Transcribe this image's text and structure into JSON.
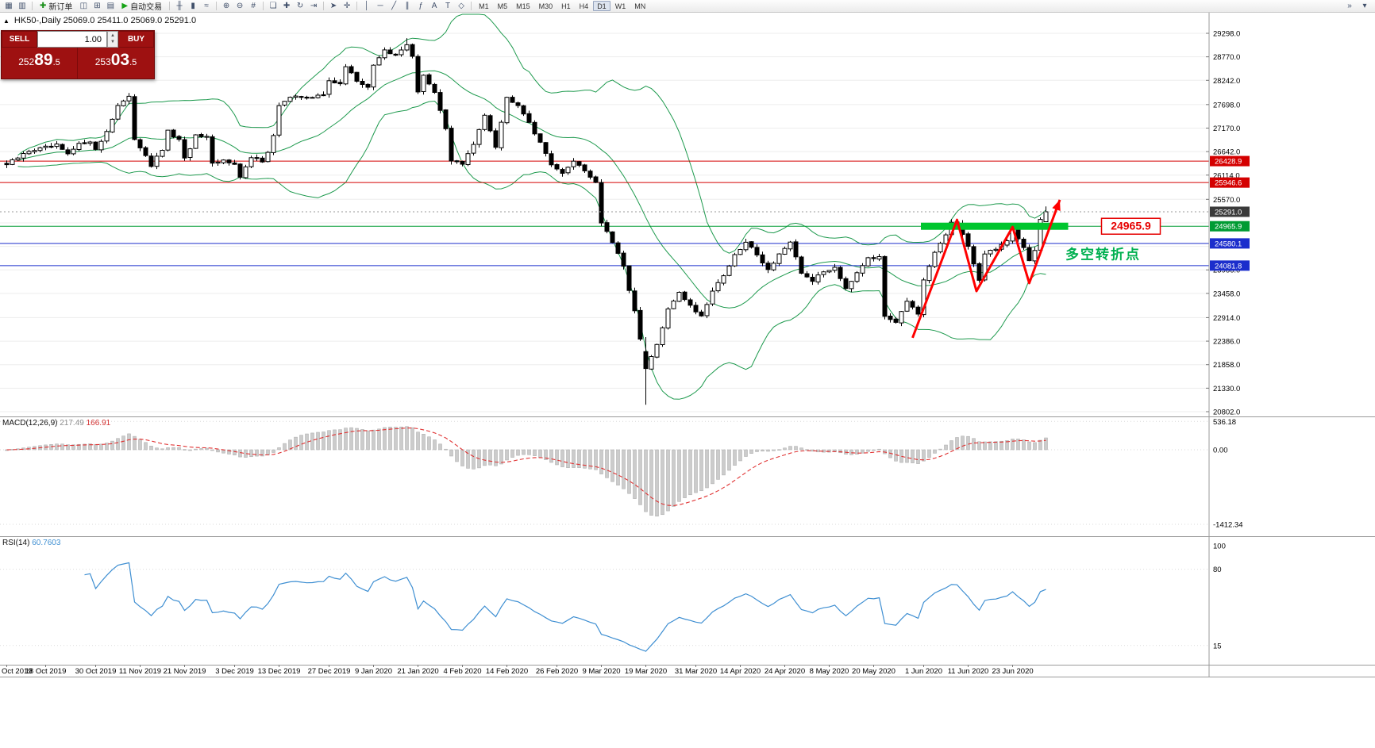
{
  "chart": {
    "title": "HK50-,Daily 25069.0 25411.0 25069.0 25291.0",
    "collapse_icon": "▲"
  },
  "toolbar": {
    "items": [
      {
        "type": "icon",
        "name": "new-chart-icon",
        "glyph": "▦"
      },
      {
        "type": "icon",
        "name": "chart-profiles-icon",
        "glyph": "▥"
      },
      {
        "type": "sep"
      },
      {
        "type": "button",
        "name": "new-order-button",
        "glyph": "✚",
        "glyph_color": "#1a8f1a",
        "label": "新订单"
      },
      {
        "type": "icon",
        "name": "market-watch-icon",
        "glyph": "◫"
      },
      {
        "type": "icon",
        "name": "data-window-icon",
        "glyph": "⊞"
      },
      {
        "type": "icon",
        "name": "navigator-icon",
        "glyph": "▤"
      },
      {
        "type": "button",
        "name": "autotrading-button",
        "glyph": "▶",
        "glyph_color": "#17a317",
        "label": "自动交易"
      },
      {
        "type": "sep"
      },
      {
        "type": "icon",
        "name": "bar-chart-icon",
        "glyph": "╫"
      },
      {
        "type": "icon",
        "name": "candlestick-chart-icon",
        "glyph": "▮"
      },
      {
        "type": "icon",
        "name": "line-chart-icon",
        "glyph": "≈"
      },
      {
        "type": "sep"
      },
      {
        "type": "icon",
        "name": "zoom-in-icon",
        "glyph": "⊕"
      },
      {
        "type": "icon",
        "name": "zoom-out-icon",
        "glyph": "⊖"
      },
      {
        "type": "icon",
        "name": "grid-icon",
        "glyph": "#"
      },
      {
        "type": "sep"
      },
      {
        "type": "icon",
        "name": "tile-windows-icon",
        "glyph": "❏"
      },
      {
        "type": "icon",
        "name": "indicators-icon",
        "glyph": "✚"
      },
      {
        "type": "icon",
        "name": "auto-scroll-icon",
        "glyph": "↻"
      },
      {
        "type": "icon",
        "name": "chart-shift-icon",
        "glyph": "⇥"
      },
      {
        "type": "sep"
      },
      {
        "type": "icon",
        "name": "cursor-icon",
        "glyph": "➤"
      },
      {
        "type": "icon",
        "name": "crosshair-icon",
        "glyph": "✛"
      },
      {
        "type": "sep"
      },
      {
        "type": "icon",
        "name": "vertical-line-icon",
        "glyph": "│"
      },
      {
        "type": "icon",
        "name": "horizontal-line-icon",
        "glyph": "─"
      },
      {
        "type": "icon",
        "name": "trendline-icon",
        "glyph": "╱"
      },
      {
        "type": "icon",
        "name": "channel-icon",
        "glyph": "∥"
      },
      {
        "type": "icon",
        "name": "fibonacci-icon",
        "glyph": "ƒ"
      },
      {
        "type": "icon",
        "name": "text-icon",
        "glyph": "A"
      },
      {
        "type": "icon",
        "name": "label-icon",
        "glyph": "T"
      },
      {
        "type": "icon",
        "name": "shapes-icon",
        "glyph": "◇"
      },
      {
        "type": "sep"
      }
    ],
    "timeframes": [
      {
        "label": "M1"
      },
      {
        "label": "M5"
      },
      {
        "label": "M15"
      },
      {
        "label": "M30"
      },
      {
        "label": "H1"
      },
      {
        "label": "H4"
      },
      {
        "label": "D1",
        "active": true
      },
      {
        "label": "W1"
      },
      {
        "label": "MN"
      }
    ],
    "right_icons": [
      {
        "name": "toolbar-overflow-icon",
        "glyph": "»"
      },
      {
        "name": "toolbar-options-icon",
        "glyph": "▾"
      }
    ]
  },
  "trade_panel": {
    "sell_label": "SELL",
    "buy_label": "BUY",
    "volume": "1.00",
    "spin_up": "▲",
    "spin_down": "▼",
    "sell_price": "25289.5",
    "buy_price": "25303.5",
    "sell_price_parts": [
      "252",
      "89",
      ".5"
    ],
    "buy_price_parts": [
      "253",
      "03",
      ".5"
    ]
  },
  "price_axis": {
    "labels": [
      {
        "text": "29298.0",
        "price": 29298
      },
      {
        "text": "28770.0",
        "price": 28770
      },
      {
        "text": "28242.0",
        "price": 28242
      },
      {
        "text": "27698.0",
        "price": 27698
      },
      {
        "text": "27170.0",
        "price": 27170
      },
      {
        "text": "26642.0",
        "price": 26642
      },
      {
        "text": "26114.0",
        "price": 26114
      },
      {
        "text": "25570.0",
        "price": 25570
      },
      {
        "text": "23986.0",
        "price": 23986
      },
      {
        "text": "23458.0",
        "price": 23458
      },
      {
        "text": "22914.0",
        "price": 22914
      },
      {
        "text": "22386.0",
        "price": 22386
      },
      {
        "text": "21858.0",
        "price": 21858
      },
      {
        "text": "21330.0",
        "price": 21330
      },
      {
        "text": "20802.0",
        "price": 20802
      }
    ],
    "hidden_grid": [
      25042,
      24514
    ],
    "current_price": {
      "text": "25291.0",
      "price": 25291,
      "bg": "#3a3a3a"
    }
  },
  "hlines": [
    {
      "text": "26428.9",
      "price": 26428.9,
      "color": "#d40000"
    },
    {
      "text": "25946.6",
      "price": 25946.6,
      "color": "#d40000"
    },
    {
      "text": "24965.9",
      "price": 24965.9,
      "color": "#009b33"
    },
    {
      "text": "24580.1",
      "price": 24580.1,
      "color": "#1b2ecc"
    },
    {
      "text": "24081.8",
      "price": 24081.8,
      "color": "#1b2ecc"
    }
  ],
  "annotations": {
    "resistance_bar": {
      "from_index": 164.5,
      "to_index": 191,
      "price": 24965.9,
      "thickness": 9,
      "color": "#00c62e"
    },
    "zigzag": {
      "color": "#ff0000",
      "width": 3,
      "points": [
        [
          163,
          22460
        ],
        [
          171,
          25110
        ],
        [
          174.5,
          23510
        ],
        [
          181,
          24950
        ],
        [
          184,
          23690
        ],
        [
          189.5,
          25560
        ]
      ]
    },
    "price_tag": {
      "text": "24965.9",
      "color": "#e60000",
      "index": 197,
      "price": 24965.9
    },
    "note": {
      "text": "多空转折点",
      "color": "#00b050",
      "index": 190.5,
      "price": 24230
    }
  },
  "dates": [
    {
      "i": 0,
      "label": "Oct 2019",
      "align": "start"
    },
    {
      "i": 7,
      "label": "18 Oct 2019"
    },
    {
      "i": 16,
      "label": "30 Oct 2019"
    },
    {
      "i": 24,
      "label": "11 Nov 2019"
    },
    {
      "i": 32,
      "label": "21 Nov 2019"
    },
    {
      "i": 41,
      "label": "3 Dec 2019"
    },
    {
      "i": 49,
      "label": "13 Dec 2019"
    },
    {
      "i": 58,
      "label": "27 Dec 2019"
    },
    {
      "i": 66,
      "label": "9 Jan 2020"
    },
    {
      "i": 74,
      "label": "21 Jan 2020"
    },
    {
      "i": 82,
      "label": "4 Feb 2020"
    },
    {
      "i": 90,
      "label": "14 Feb 2020"
    },
    {
      "i": 99,
      "label": "26 Feb 2020"
    },
    {
      "i": 107,
      "label": "9 Mar 2020"
    },
    {
      "i": 115,
      "label": "19 Mar 2020"
    },
    {
      "i": 124,
      "label": "31 Mar 2020"
    },
    {
      "i": 132,
      "label": "14 Apr 2020"
    },
    {
      "i": 140,
      "label": "24 Apr 2020"
    },
    {
      "i": 148,
      "label": "8 May 2020"
    },
    {
      "i": 156,
      "label": "20 May 2020"
    },
    {
      "i": 165,
      "label": "1 Jun 2020"
    },
    {
      "i": 173,
      "label": "11 Jun 2020"
    },
    {
      "i": 181,
      "label": "23 Jun 2020"
    }
  ],
  "macd": {
    "title": "MACD(12,26,9)",
    "main_value": "217.49",
    "signal_value": "166.91",
    "axis": [
      {
        "text": "536.18",
        "value": 536.18
      },
      {
        "text": "0.00",
        "value": 0
      },
      {
        "text": "-1412.34",
        "value": -1412.34
      }
    ]
  },
  "rsi": {
    "title": "RSI(14)",
    "value": "60.7603",
    "period": 14,
    "axis": [
      {
        "text": "100",
        "value": 100
      },
      {
        "text": "80",
        "value": 80
      },
      {
        "text": "15",
        "value": 15
      }
    ]
  },
  "chart_data": {
    "type": "candlestick",
    "symbol": "HK50-",
    "timeframe": "Daily",
    "candle_count": 188,
    "price_range": [
      20802,
      29298
    ],
    "last_candle": {
      "open": 25069.0,
      "high": 25411.0,
      "low": 25069.0,
      "close": 25291.0
    },
    "bollinger": {
      "period": 20,
      "deviation": 2
    },
    "anchor_closes": [
      [
        0,
        26350
      ],
      [
        2,
        26500
      ],
      [
        4,
        26660
      ],
      [
        7,
        26730
      ],
      [
        9,
        26780
      ],
      [
        11,
        26570
      ],
      [
        13,
        26800
      ],
      [
        15,
        26890
      ],
      [
        16,
        26670
      ],
      [
        18,
        27100
      ],
      [
        20,
        27680
      ],
      [
        22,
        27850
      ],
      [
        23,
        26930
      ],
      [
        25,
        26570
      ],
      [
        26,
        26330
      ],
      [
        28,
        26680
      ],
      [
        29,
        27090
      ],
      [
        31,
        26890
      ],
      [
        32,
        26470
      ],
      [
        34,
        26990
      ],
      [
        36,
        26950
      ],
      [
        37,
        26350
      ],
      [
        39,
        26440
      ],
      [
        41,
        26390
      ],
      [
        42,
        26060
      ],
      [
        44,
        26500
      ],
      [
        46,
        26440
      ],
      [
        47,
        26650
      ],
      [
        48,
        26990
      ],
      [
        49,
        27690
      ],
      [
        51,
        27840
      ],
      [
        53,
        27880
      ],
      [
        55,
        27870
      ],
      [
        57,
        27906
      ],
      [
        58,
        28225
      ],
      [
        60,
        28190
      ],
      [
        61,
        28540
      ],
      [
        63,
        28230
      ],
      [
        65,
        28090
      ],
      [
        66,
        28560
      ],
      [
        68,
        28950
      ],
      [
        70,
        28774
      ],
      [
        72,
        29060
      ],
      [
        73,
        28800
      ],
      [
        74,
        27990
      ],
      [
        75,
        28340
      ],
      [
        77,
        27950
      ],
      [
        79,
        27160
      ],
      [
        80,
        26450
      ],
      [
        82,
        26360
      ],
      [
        84,
        26790
      ],
      [
        86,
        27490
      ],
      [
        88,
        26770
      ],
      [
        90,
        27850
      ],
      [
        92,
        27710
      ],
      [
        94,
        27310
      ],
      [
        96,
        26820
      ],
      [
        98,
        26380
      ],
      [
        100,
        26130
      ],
      [
        102,
        26450
      ],
      [
        104,
        26220
      ],
      [
        106,
        25950
      ],
      [
        107,
        25050
      ],
      [
        109,
        24600
      ],
      [
        111,
        24050
      ],
      [
        113,
        23060
      ],
      [
        115,
        21750
      ],
      [
        117,
        22300
      ],
      [
        119,
        23080
      ],
      [
        121,
        23500
      ],
      [
        123,
        23180
      ],
      [
        125,
        22950
      ],
      [
        127,
        23520
      ],
      [
        129,
        23870
      ],
      [
        131,
        24300
      ],
      [
        133,
        24600
      ],
      [
        135,
        24350
      ],
      [
        137,
        23980
      ],
      [
        139,
        24350
      ],
      [
        141,
        24580
      ],
      [
        143,
        23910
      ],
      [
        145,
        23750
      ],
      [
        147,
        23940
      ],
      [
        149,
        24050
      ],
      [
        151,
        23580
      ],
      [
        153,
        23940
      ],
      [
        155,
        24280
      ],
      [
        157,
        24250
      ],
      [
        158,
        22950
      ],
      [
        160,
        22840
      ],
      [
        162,
        23300
      ],
      [
        164,
        22960
      ],
      [
        165,
        23730
      ],
      [
        167,
        24370
      ],
      [
        169,
        24770
      ],
      [
        170,
        25060
      ],
      [
        171,
        25050
      ],
      [
        173,
        24480
      ],
      [
        175,
        23780
      ],
      [
        176,
        24340
      ],
      [
        178,
        24470
      ],
      [
        180,
        24640
      ],
      [
        181,
        24910
      ],
      [
        183,
        24500
      ],
      [
        184,
        24180
      ],
      [
        185,
        24440
      ],
      [
        186,
        25120
      ],
      [
        187,
        25291
      ]
    ]
  }
}
